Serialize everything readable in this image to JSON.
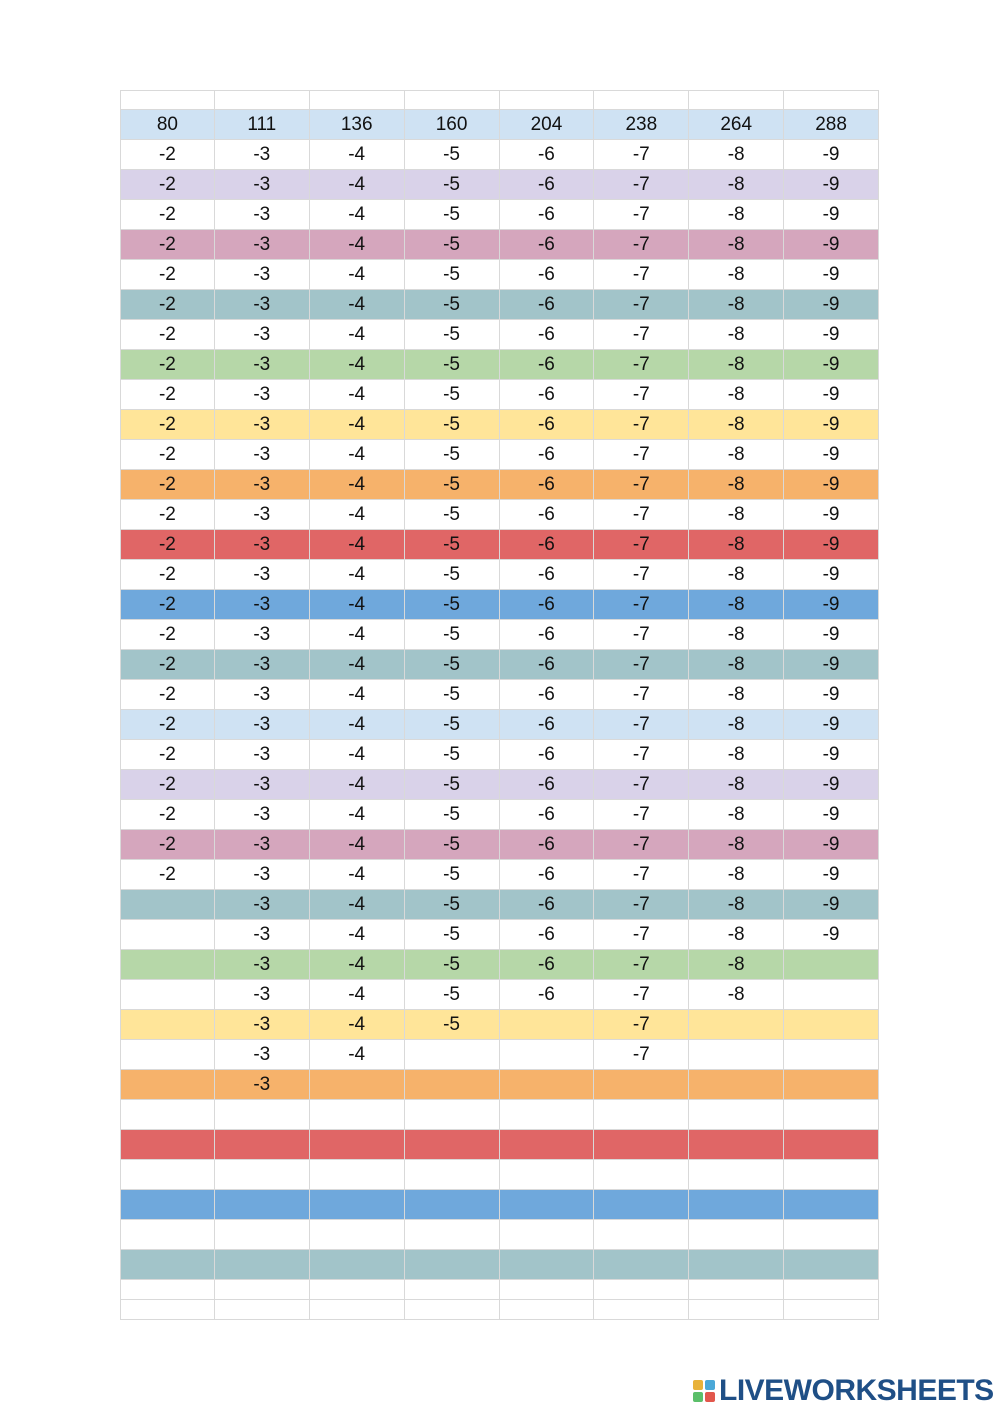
{
  "colors": {
    "white": "#ffffff",
    "lightblue": "#cfe2f3",
    "lavender": "#d9d2e9",
    "pink": "#d5a6bd",
    "teal": "#a2c4c9",
    "green": "#b6d7a8",
    "yellow": "#ffe599",
    "orange": "#f6b26b",
    "red": "#e06666",
    "blue": "#6fa8dc"
  },
  "rows": [
    {
      "color": "white",
      "height": 20,
      "cells": [
        "",
        "",
        "",
        "",
        "",
        "",
        "",
        ""
      ]
    },
    {
      "color": "lightblue",
      "height": 30,
      "cells": [
        "80",
        "111",
        "136",
        "160",
        "204",
        "238",
        "264",
        "288"
      ]
    },
    {
      "color": "white",
      "height": 30,
      "cells": [
        "-2",
        "-3",
        "-4",
        "-5",
        "-6",
        "-7",
        "-8",
        "-9"
      ]
    },
    {
      "color": "lavender",
      "height": 30,
      "cells": [
        "-2",
        "-3",
        "-4",
        "-5",
        "-6",
        "-7",
        "-8",
        "-9"
      ]
    },
    {
      "color": "white",
      "height": 30,
      "cells": [
        "-2",
        "-3",
        "-4",
        "-5",
        "-6",
        "-7",
        "-8",
        "-9"
      ]
    },
    {
      "color": "pink",
      "height": 30,
      "cells": [
        "-2",
        "-3",
        "-4",
        "-5",
        "-6",
        "-7",
        "-8",
        "-9"
      ]
    },
    {
      "color": "white",
      "height": 30,
      "cells": [
        "-2",
        "-3",
        "-4",
        "-5",
        "-6",
        "-7",
        "-8",
        "-9"
      ]
    },
    {
      "color": "teal",
      "height": 30,
      "cells": [
        "-2",
        "-3",
        "-4",
        "-5",
        "-6",
        "-7",
        "-8",
        "-9"
      ]
    },
    {
      "color": "white",
      "height": 30,
      "cells": [
        "-2",
        "-3",
        "-4",
        "-5",
        "-6",
        "-7",
        "-8",
        "-9"
      ]
    },
    {
      "color": "green",
      "height": 30,
      "cells": [
        "-2",
        "-3",
        "-4",
        "-5",
        "-6",
        "-7",
        "-8",
        "-9"
      ]
    },
    {
      "color": "white",
      "height": 30,
      "cells": [
        "-2",
        "-3",
        "-4",
        "-5",
        "-6",
        "-7",
        "-8",
        "-9"
      ]
    },
    {
      "color": "yellow",
      "height": 30,
      "cells": [
        "-2",
        "-3",
        "-4",
        "-5",
        "-6",
        "-7",
        "-8",
        "-9"
      ]
    },
    {
      "color": "white",
      "height": 30,
      "cells": [
        "-2",
        "-3",
        "-4",
        "-5",
        "-6",
        "-7",
        "-8",
        "-9"
      ]
    },
    {
      "color": "orange",
      "height": 30,
      "cells": [
        "-2",
        "-3",
        "-4",
        "-5",
        "-6",
        "-7",
        "-8",
        "-9"
      ]
    },
    {
      "color": "white",
      "height": 30,
      "cells": [
        "-2",
        "-3",
        "-4",
        "-5",
        "-6",
        "-7",
        "-8",
        "-9"
      ]
    },
    {
      "color": "red",
      "height": 30,
      "cells": [
        "-2",
        "-3",
        "-4",
        "-5",
        "-6",
        "-7",
        "-8",
        "-9"
      ]
    },
    {
      "color": "white",
      "height": 30,
      "cells": [
        "-2",
        "-3",
        "-4",
        "-5",
        "-6",
        "-7",
        "-8",
        "-9"
      ]
    },
    {
      "color": "blue",
      "height": 30,
      "cells": [
        "-2",
        "-3",
        "-4",
        "-5",
        "-6",
        "-7",
        "-8",
        "-9"
      ]
    },
    {
      "color": "white",
      "height": 30,
      "cells": [
        "-2",
        "-3",
        "-4",
        "-5",
        "-6",
        "-7",
        "-8",
        "-9"
      ]
    },
    {
      "color": "teal",
      "height": 30,
      "cells": [
        "-2",
        "-3",
        "-4",
        "-5",
        "-6",
        "-7",
        "-8",
        "-9"
      ]
    },
    {
      "color": "white",
      "height": 30,
      "cells": [
        "-2",
        "-3",
        "-4",
        "-5",
        "-6",
        "-7",
        "-8",
        "-9"
      ]
    },
    {
      "color": "lightblue",
      "height": 30,
      "cells": [
        "-2",
        "-3",
        "-4",
        "-5",
        "-6",
        "-7",
        "-8",
        "-9"
      ]
    },
    {
      "color": "white",
      "height": 30,
      "cells": [
        "-2",
        "-3",
        "-4",
        "-5",
        "-6",
        "-7",
        "-8",
        "-9"
      ]
    },
    {
      "color": "lavender",
      "height": 30,
      "cells": [
        "-2",
        "-3",
        "-4",
        "-5",
        "-6",
        "-7",
        "-8",
        "-9"
      ]
    },
    {
      "color": "white",
      "height": 30,
      "cells": [
        "-2",
        "-3",
        "-4",
        "-5",
        "-6",
        "-7",
        "-8",
        "-9"
      ]
    },
    {
      "color": "pink",
      "height": 30,
      "cells": [
        "-2",
        "-3",
        "-4",
        "-5",
        "-6",
        "-7",
        "-8",
        "-9"
      ]
    },
    {
      "color": "white",
      "height": 30,
      "cells": [
        "-2",
        "-3",
        "-4",
        "-5",
        "-6",
        "-7",
        "-8",
        "-9"
      ]
    },
    {
      "color": "teal",
      "height": 30,
      "cells": [
        "",
        "-3",
        "-4",
        "-5",
        "-6",
        "-7",
        "-8",
        "-9"
      ]
    },
    {
      "color": "white",
      "height": 30,
      "cells": [
        "",
        "-3",
        "-4",
        "-5",
        "-6",
        "-7",
        "-8",
        "-9"
      ]
    },
    {
      "color": "green",
      "height": 30,
      "cells": [
        "",
        "-3",
        "-4",
        "-5",
        "-6",
        "-7",
        "-8",
        ""
      ]
    },
    {
      "color": "white",
      "height": 30,
      "cells": [
        "",
        "-3",
        "-4",
        "-5",
        "-6",
        "-7",
        "-8",
        ""
      ]
    },
    {
      "color": "yellow",
      "height": 30,
      "cells": [
        "",
        "-3",
        "-4",
        "-5",
        "",
        "-7",
        "",
        ""
      ]
    },
    {
      "color": "white",
      "height": 30,
      "cells": [
        "",
        "-3",
        "-4",
        "",
        "",
        "-7",
        "",
        ""
      ]
    },
    {
      "color": "orange",
      "height": 30,
      "cells": [
        "",
        "-3",
        "",
        "",
        "",
        "",
        "",
        ""
      ]
    },
    {
      "color": "white",
      "height": 30,
      "cells": [
        "",
        "",
        "",
        "",
        "",
        "",
        "",
        ""
      ]
    },
    {
      "color": "red",
      "height": 30,
      "cells": [
        "",
        "",
        "",
        "",
        "",
        "",
        "",
        ""
      ]
    },
    {
      "color": "white",
      "height": 30,
      "cells": [
        "",
        "",
        "",
        "",
        "",
        "",
        "",
        ""
      ]
    },
    {
      "color": "blue",
      "height": 30,
      "cells": [
        "",
        "",
        "",
        "",
        "",
        "",
        "",
        ""
      ]
    },
    {
      "color": "white",
      "height": 30,
      "cells": [
        "",
        "",
        "",
        "",
        "",
        "",
        "",
        ""
      ]
    },
    {
      "color": "teal",
      "height": 30,
      "cells": [
        "",
        "",
        "",
        "",
        "",
        "",
        "",
        ""
      ]
    },
    {
      "color": "white",
      "height": 20,
      "cells": [
        "",
        "",
        "",
        "",
        "",
        "",
        "",
        ""
      ]
    },
    {
      "color": "white",
      "height": 20,
      "cells": [
        "",
        "",
        "",
        "",
        "",
        "",
        "",
        ""
      ]
    }
  ],
  "logo": {
    "text": "LIVEWORKSHEETS",
    "icon": "liveworksheets-logo-icon",
    "mark_colors": [
      "#e8b23a",
      "#4aa8d8",
      "#5bbf6a",
      "#e2574c"
    ]
  }
}
